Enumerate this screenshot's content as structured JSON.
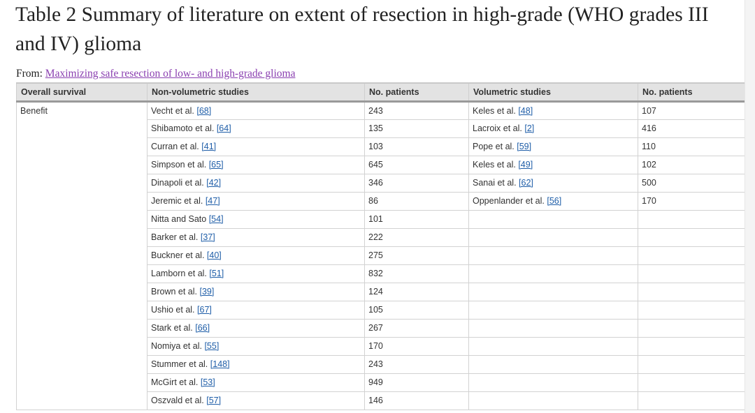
{
  "title": "Table 2 Summary of literature on extent of resection in high-grade (WHO grades III and IV) glioma",
  "from": {
    "label": "From:",
    "link_text": "Maximizing safe resection of low- and high-grade glioma"
  },
  "table": {
    "headers": [
      "Overall survival",
      "Non-volumetric studies",
      "No. patients",
      "Volumetric studies",
      "No. patients"
    ],
    "group_label": "Benefit",
    "rows": [
      {
        "nv_study": "Vecht et al.",
        "nv_ref": "[68]",
        "nv_n": "243",
        "v_study": "Keles et al.",
        "v_ref": "[48]",
        "v_n": "107"
      },
      {
        "nv_study": "Shibamoto et al.",
        "nv_ref": "[64]",
        "nv_n": "135",
        "v_study": "Lacroix et al.",
        "v_ref": "[2]",
        "v_n": "416"
      },
      {
        "nv_study": "Curran et al.",
        "nv_ref": "[41]",
        "nv_n": "103",
        "v_study": "Pope et al.",
        "v_ref": "[59]",
        "v_n": "110"
      },
      {
        "nv_study": "Simpson et al.",
        "nv_ref": "[65]",
        "nv_n": "645",
        "v_study": "Keles et al.",
        "v_ref": "[49]",
        "v_n": "102"
      },
      {
        "nv_study": "Dinapoli et al.",
        "nv_ref": "[42]",
        "nv_n": "346",
        "v_study": "Sanai et al.",
        "v_ref": "[62]",
        "v_n": "500"
      },
      {
        "nv_study": "Jeremic et al.",
        "nv_ref": "[47]",
        "nv_n": "86",
        "v_study": "Oppenlander et al.",
        "v_ref": "[56]",
        "v_n": "170"
      },
      {
        "nv_study": "Nitta and Sato",
        "nv_ref": "[54]",
        "nv_n": "101",
        "v_study": "",
        "v_ref": "",
        "v_n": ""
      },
      {
        "nv_study": "Barker et al.",
        "nv_ref": "[37]",
        "nv_n": "222",
        "v_study": "",
        "v_ref": "",
        "v_n": ""
      },
      {
        "nv_study": "Buckner et al.",
        "nv_ref": "[40]",
        "nv_n": "275",
        "v_study": "",
        "v_ref": "",
        "v_n": ""
      },
      {
        "nv_study": "Lamborn et al.",
        "nv_ref": "[51]",
        "nv_n": "832",
        "v_study": "",
        "v_ref": "",
        "v_n": ""
      },
      {
        "nv_study": "Brown et al.",
        "nv_ref": "[39]",
        "nv_n": "124",
        "v_study": "",
        "v_ref": "",
        "v_n": ""
      },
      {
        "nv_study": "Ushio et al.",
        "nv_ref": "[67]",
        "nv_n": "105",
        "v_study": "",
        "v_ref": "",
        "v_n": ""
      },
      {
        "nv_study": "Stark et al.",
        "nv_ref": "[66]",
        "nv_n": "267",
        "v_study": "",
        "v_ref": "",
        "v_n": ""
      },
      {
        "nv_study": "Nomiya et al.",
        "nv_ref": "[55]",
        "nv_n": "170",
        "v_study": "",
        "v_ref": "",
        "v_n": ""
      },
      {
        "nv_study": "Stummer et al.",
        "nv_ref": "[148]",
        "nv_n": "243",
        "v_study": "",
        "v_ref": "",
        "v_n": ""
      },
      {
        "nv_study": "McGirt et al.",
        "nv_ref": "[53]",
        "nv_n": "949",
        "v_study": "",
        "v_ref": "",
        "v_n": ""
      },
      {
        "nv_study": "Oszvald et al.",
        "nv_ref": "[57]",
        "nv_n": "146",
        "v_study": "",
        "v_ref": "",
        "v_n": ""
      }
    ]
  },
  "colors": {
    "header_bg": "#e3e3e3",
    "ref_link": "#1f5ea8",
    "source_link": "#8a3fb0"
  }
}
